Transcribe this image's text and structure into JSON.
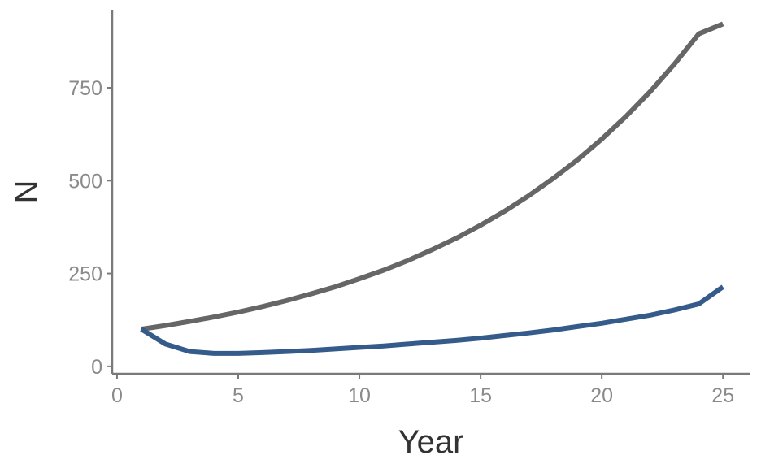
{
  "chart_data": {
    "type": "line",
    "title": "",
    "xlabel": "Year",
    "ylabel": "N",
    "xlim": [
      -0.2,
      26.1
    ],
    "ylim": [
      -20,
      960
    ],
    "x_ticks": [
      0,
      5,
      10,
      15,
      20,
      25
    ],
    "y_ticks": [
      0,
      250,
      500,
      750
    ],
    "grid": false,
    "x": [
      1,
      2,
      3,
      4,
      5,
      6,
      7,
      8,
      9,
      10,
      11,
      12,
      13,
      14,
      15,
      16,
      17,
      18,
      19,
      20,
      21,
      22,
      23,
      24,
      25
    ],
    "series": [
      {
        "color": "#666666",
        "values": [
          100,
          110,
          121,
          133,
          146,
          161,
          177,
          195,
          214,
          236,
          259,
          285,
          314,
          345,
          380,
          418,
          460,
          506,
          556,
          612,
          673,
          740,
          814,
          895,
          922
        ]
      },
      {
        "color": "#345b8a",
        "values": [
          100,
          60,
          40,
          35,
          35,
          37,
          40,
          43,
          47,
          51,
          55,
          60,
          65,
          70,
          76,
          83,
          90,
          98,
          107,
          116,
          127,
          138,
          152,
          168,
          214
        ]
      }
    ]
  }
}
